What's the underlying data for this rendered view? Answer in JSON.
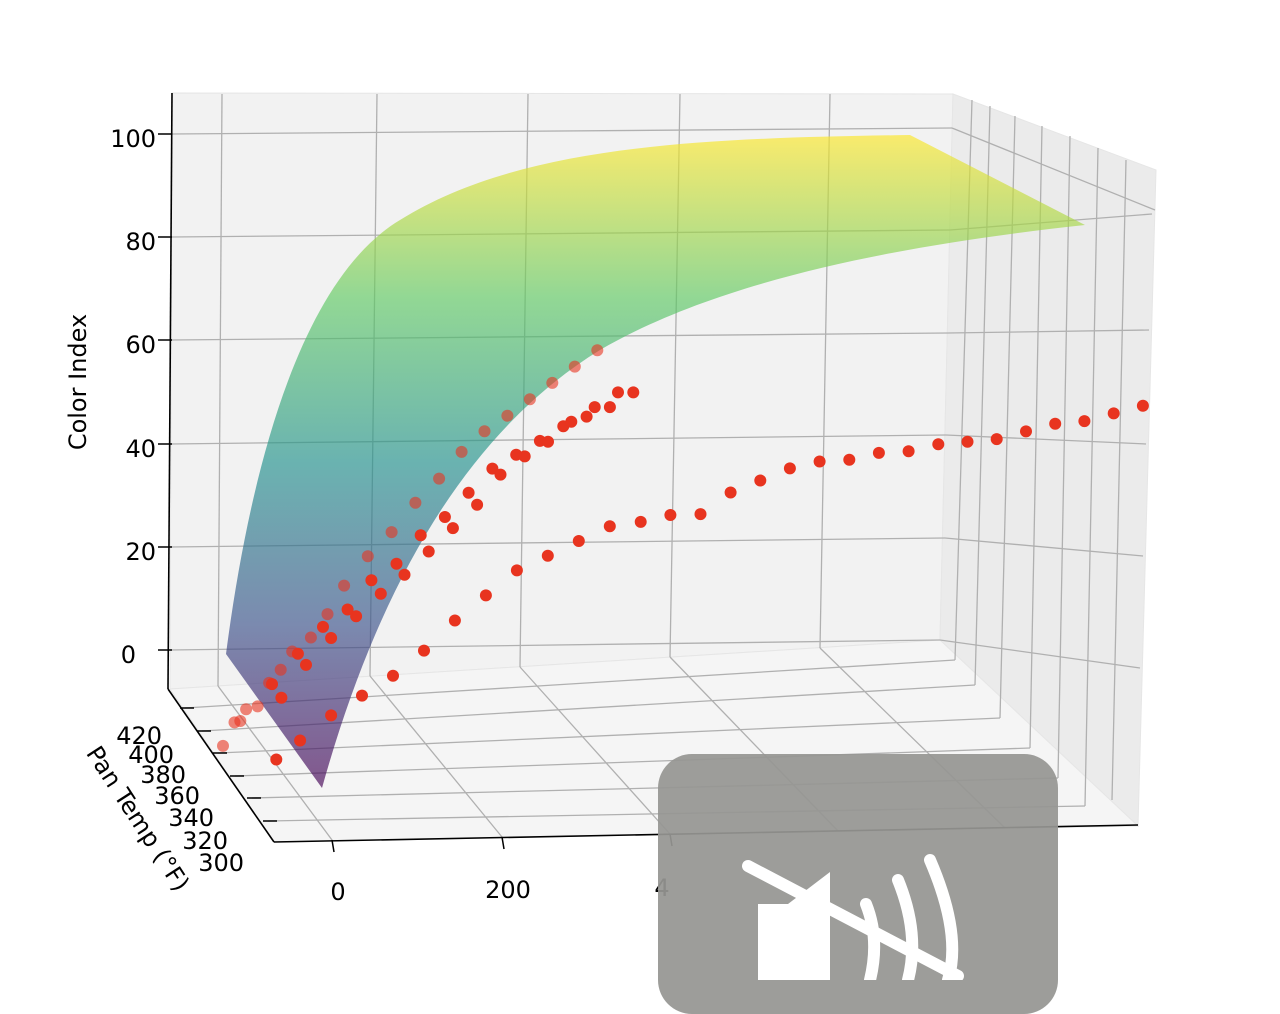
{
  "chart_data": {
    "type": "surface3d+scatter",
    "title": "",
    "zlabel": "Color Index",
    "ylabel": "Pan Temp (°F)",
    "xlabel": "",
    "z_ticks": [
      "0",
      "20",
      "40",
      "60",
      "80",
      "100"
    ],
    "y_ticks": [
      "300",
      "320",
      "340",
      "360",
      "380",
      "400",
      "420"
    ],
    "x_ticks": [
      "0",
      "200",
      "4"
    ],
    "xlim": [
      -20,
      1200
    ],
    "ylim": [
      295,
      425
    ],
    "zlim": [
      -8,
      105
    ],
    "colormap": "viridis",
    "surface_alpha": 0.65,
    "scatter_color": "#e8341f",
    "series": [
      {
        "values": [
          [
            0,
            420,
            -1
          ],
          [
            10,
            410,
            5
          ],
          [
            15,
            405,
            6
          ],
          [
            20,
            400,
            9
          ],
          [
            30,
            390,
            11
          ],
          [
            40,
            380,
            17
          ],
          [
            50,
            370,
            21
          ],
          [
            60,
            360,
            26
          ],
          [
            80,
            350,
            30
          ],
          [
            100,
            345,
            35
          ],
          [
            120,
            340,
            41
          ],
          [
            150,
            335,
            47
          ],
          [
            180,
            330,
            52
          ],
          [
            210,
            325,
            58
          ],
          [
            240,
            320,
            63
          ],
          [
            270,
            318,
            68
          ],
          [
            300,
            315,
            72
          ],
          [
            330,
            312,
            75
          ],
          [
            360,
            310,
            78
          ],
          [
            390,
            308,
            81
          ],
          [
            420,
            306,
            84
          ],
          [
            450,
            304,
            87
          ]
        ]
      },
      {
        "values": [
          [
            50,
            390,
            15
          ],
          [
            60,
            385,
            13
          ],
          [
            80,
            380,
            22
          ],
          [
            90,
            378,
            20
          ],
          [
            110,
            372,
            28
          ],
          [
            120,
            370,
            26
          ],
          [
            140,
            365,
            32
          ],
          [
            150,
            362,
            31
          ],
          [
            170,
            360,
            38
          ],
          [
            180,
            355,
            36
          ],
          [
            200,
            352,
            42
          ],
          [
            210,
            350,
            40
          ],
          [
            230,
            346,
            48
          ],
          [
            240,
            344,
            45
          ],
          [
            260,
            340,
            52
          ],
          [
            270,
            338,
            50
          ],
          [
            290,
            335,
            57
          ],
          [
            300,
            332,
            55
          ],
          [
            320,
            330,
            62
          ],
          [
            330,
            328,
            61
          ],
          [
            350,
            325,
            65
          ],
          [
            360,
            322,
            65
          ],
          [
            380,
            320,
            68
          ],
          [
            390,
            318,
            68
          ],
          [
            410,
            316,
            71
          ],
          [
            420,
            314,
            72
          ],
          [
            440,
            312,
            73
          ],
          [
            450,
            310,
            75
          ],
          [
            470,
            308,
            75
          ],
          [
            480,
            306,
            78
          ],
          [
            500,
            304,
            78
          ]
        ]
      },
      {
        "values": [
          [
            50,
            380,
            2
          ],
          [
            80,
            375,
            6
          ],
          [
            120,
            370,
            11
          ],
          [
            160,
            365,
            15
          ],
          [
            200,
            360,
            19
          ],
          [
            240,
            355,
            24
          ],
          [
            280,
            350,
            30
          ],
          [
            320,
            345,
            35
          ],
          [
            360,
            340,
            40
          ],
          [
            400,
            335,
            43
          ],
          [
            440,
            330,
            46
          ],
          [
            480,
            325,
            49
          ],
          [
            520,
            320,
            50
          ],
          [
            560,
            318,
            51
          ],
          [
            600,
            315,
            51
          ],
          [
            640,
            312,
            55
          ],
          [
            680,
            310,
            57
          ],
          [
            720,
            308,
            59
          ],
          [
            760,
            306,
            60
          ],
          [
            800,
            304,
            60
          ],
          [
            840,
            302,
            61
          ],
          [
            880,
            300,
            61
          ],
          [
            920,
            298,
            62
          ],
          [
            960,
            297,
            62
          ],
          [
            1000,
            296,
            62
          ],
          [
            1040,
            295,
            63
          ],
          [
            1080,
            294,
            64
          ],
          [
            1120,
            293,
            64
          ],
          [
            1160,
            292,
            65
          ],
          [
            1200,
            291,
            66
          ]
        ]
      }
    ]
  },
  "overlay": {
    "icon": "speaker-muted-icon",
    "background": "#9a9a96"
  }
}
